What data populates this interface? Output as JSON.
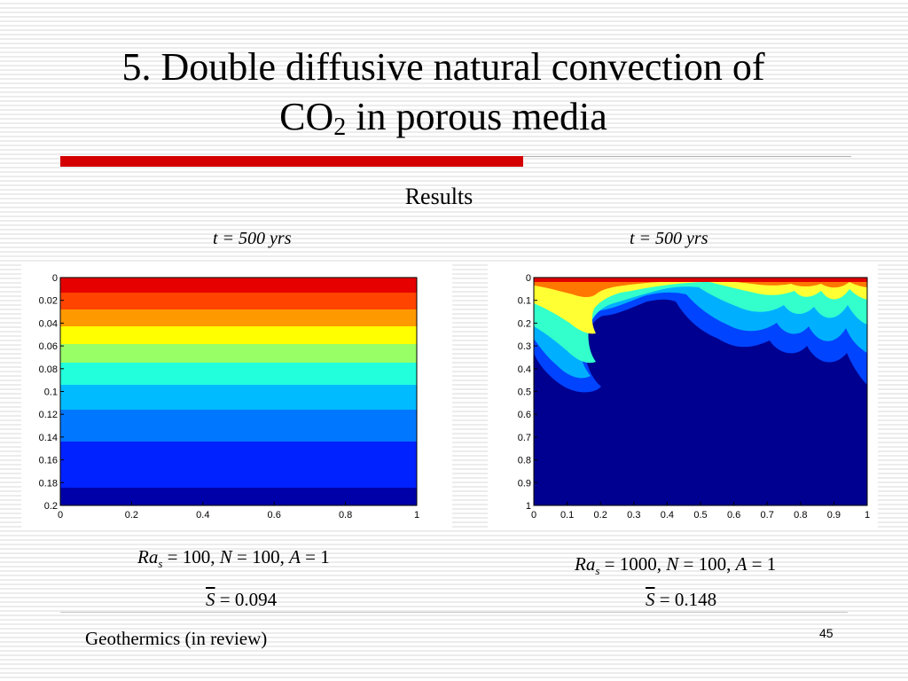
{
  "slide": {
    "title_line1": "5. Double diffusive natural convection of",
    "title_co": "CO",
    "title_sub": "2",
    "title_rest": " in porous media",
    "subtitle": "Results",
    "footer": "Geothermics (in review)",
    "page_number": "45",
    "accent_color": "#d40000"
  },
  "panels": [
    {
      "time_label": "t = 500 yrs",
      "params": {
        "ra": "Ra",
        "ra_sub": "s",
        "ra_val": " = 100, ",
        "n": "N",
        "n_val": " = 100, ",
        "a": "A",
        "a_val": " = 1"
      },
      "s_label": "S",
      "s_value": " = 0.094",
      "x_ticks": [
        "0",
        "0.2",
        "0.4",
        "0.6",
        "0.8",
        "1"
      ],
      "y_ticks": [
        "0",
        "0.02",
        "0.04",
        "0.06",
        "0.08",
        "0.1",
        "0.12",
        "0.14",
        "0.16",
        "0.18",
        "0.2"
      ]
    },
    {
      "time_label": "t = 500 yrs",
      "params": {
        "ra": "Ra",
        "ra_sub": "s",
        "ra_val": " = 1000, ",
        "n": "N",
        "n_val": " = 100, ",
        "a": "A",
        "a_val": " = 1"
      },
      "s_label": "S",
      "s_value": " = 0.148",
      "x_ticks": [
        "0",
        "0.1",
        "0.2",
        "0.3",
        "0.4",
        "0.5",
        "0.6",
        "0.7",
        "0.8",
        "0.9",
        "1"
      ],
      "y_ticks": [
        "0",
        "0.1",
        "0.2",
        "0.3",
        "0.4",
        "0.5",
        "0.6",
        "0.7",
        "0.8",
        "0.9",
        "1"
      ]
    }
  ]
}
